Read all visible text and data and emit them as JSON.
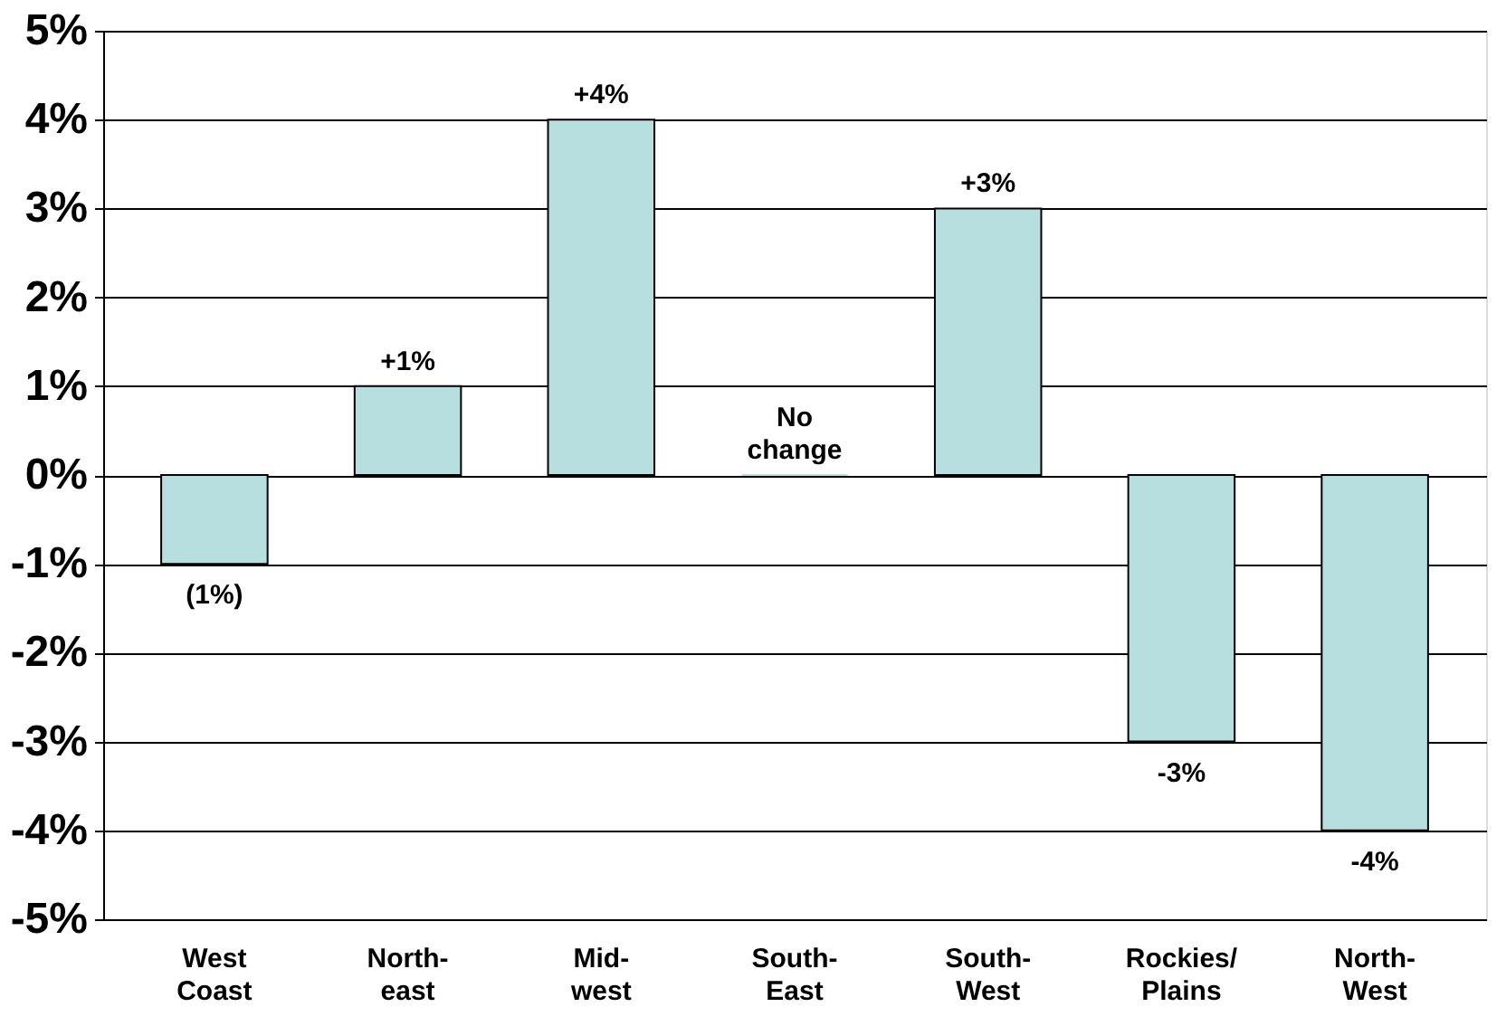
{
  "chart_data": {
    "type": "bar",
    "categories": [
      "West\nCoast",
      "North-\neast",
      "Mid-\nwest",
      "South-\nEast",
      "South-\nWest",
      "Rockies/\nPlains",
      "North-\nWest"
    ],
    "values": [
      -1,
      1,
      4,
      0,
      3,
      -3,
      -4
    ],
    "value_labels": [
      "(1%)",
      "+1%",
      "+4%",
      "No\nchange",
      "+3%",
      "-3%",
      "-4%"
    ],
    "color": "#b8dfe0",
    "ylim": [
      -5,
      5
    ],
    "yticks": [
      {
        "value": -5,
        "label": "-5%"
      },
      {
        "value": -4,
        "label": "-4%"
      },
      {
        "value": -3,
        "label": "-3%"
      },
      {
        "value": -2,
        "label": "-2%"
      },
      {
        "value": -1,
        "label": "-1%"
      },
      {
        "value": 0,
        "label": "0%"
      },
      {
        "value": 1,
        "label": "1%"
      },
      {
        "value": 2,
        "label": "2%"
      },
      {
        "value": 3,
        "label": "3%"
      },
      {
        "value": 4,
        "label": "4%"
      },
      {
        "value": 5,
        "label": "5%"
      }
    ],
    "grid": "y"
  }
}
